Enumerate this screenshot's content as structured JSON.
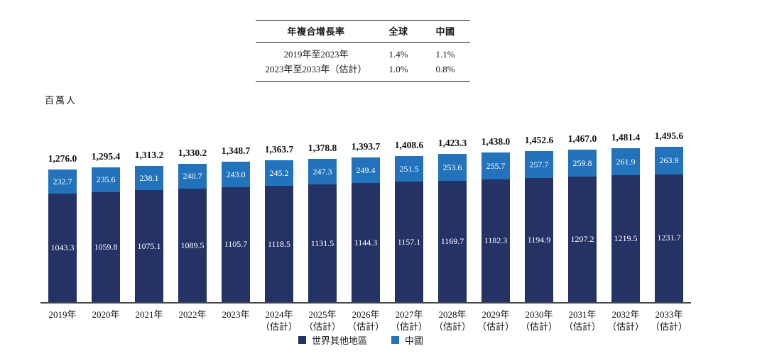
{
  "table": {
    "headers": [
      "年複合增長率",
      "全球",
      "中國"
    ],
    "rows": [
      {
        "label": "2019年至2023年",
        "global": "1.4%",
        "china": "1.1%"
      },
      {
        "label": "2023年至2033年（估計）",
        "global": "1.0%",
        "china": "0.8%"
      }
    ]
  },
  "unit_label": "百萬人",
  "chart_data": {
    "type": "bar",
    "stacked": true,
    "unit": "百萬人",
    "categories": [
      [
        "2019年"
      ],
      [
        "2020年"
      ],
      [
        "2021年"
      ],
      [
        "2022年"
      ],
      [
        "2023年"
      ],
      [
        "2024年",
        "（估計）"
      ],
      [
        "2025年",
        "（估計）"
      ],
      [
        "2026年",
        "（估計）"
      ],
      [
        "2027年",
        "（估計）"
      ],
      [
        "2028年",
        "（估計）"
      ],
      [
        "2029年",
        "（估計）"
      ],
      [
        "2030年",
        "（估計）"
      ],
      [
        "2031年",
        "（估計）"
      ],
      [
        "2032年",
        "（估計）"
      ],
      [
        "2033年",
        "（估計）"
      ]
    ],
    "series": [
      {
        "name": "世界其他地區",
        "color": "#243266",
        "values": [
          1043.3,
          1059.8,
          1075.1,
          1089.5,
          1105.7,
          1118.5,
          1131.5,
          1144.3,
          1157.1,
          1169.7,
          1182.3,
          1194.9,
          1207.2,
          1219.5,
          1231.7
        ]
      },
      {
        "name": "中國",
        "color": "#2273BC",
        "values": [
          232.7,
          235.6,
          238.1,
          240.7,
          243.0,
          245.2,
          247.3,
          249.4,
          251.5,
          253.6,
          255.7,
          257.7,
          259.8,
          261.9,
          263.9
        ]
      }
    ],
    "totals": [
      1276.0,
      1295.4,
      1313.2,
      1330.2,
      1348.7,
      1363.7,
      1378.8,
      1393.7,
      1408.6,
      1423.3,
      1438.0,
      1452.6,
      1467.0,
      1481.4,
      1495.6
    ],
    "legend": [
      "世界其他地區",
      "中國"
    ],
    "value_label_color": "#ffffff",
    "axis_color": "#474747",
    "ylim": [
      0,
      1500
    ]
  }
}
